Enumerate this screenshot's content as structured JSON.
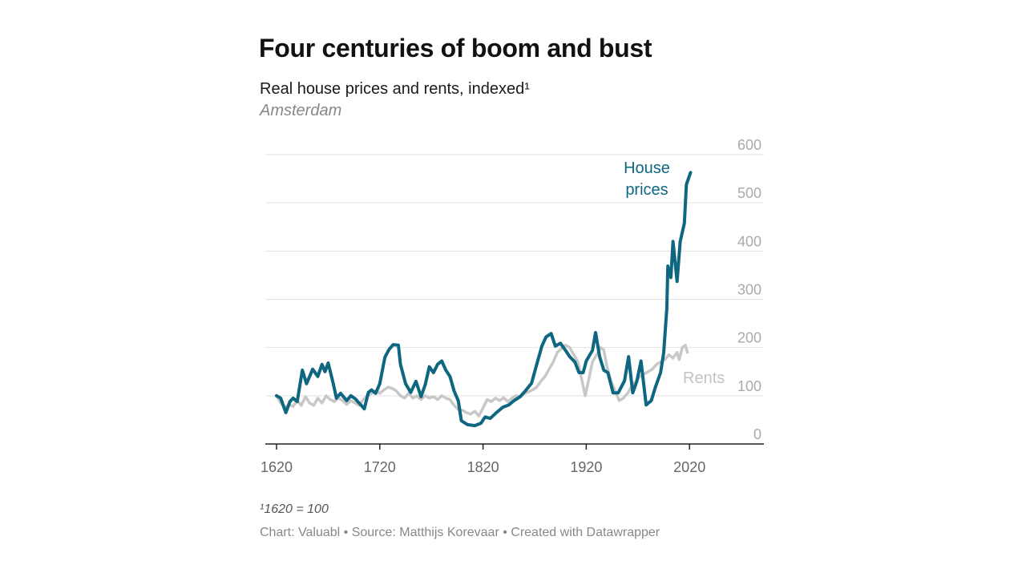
{
  "header": {
    "title": "Four centuries of boom and bust",
    "subtitle": "Real house prices and rents, indexed¹",
    "place": "Amsterdam"
  },
  "footer": {
    "footnote": "¹1620 = 100",
    "credits": "Chart: Valuabl • Source: Matthijs Korevaar • Created with Datawrapper"
  },
  "chart_data": {
    "type": "line",
    "title": "Four centuries of boom and bust",
    "subtitle": "Real house prices and rents, indexed¹",
    "xlabel": "",
    "ylabel": "",
    "xlim": [
      1610,
      2090
    ],
    "ylim": [
      0,
      600
    ],
    "x_ticks": [
      1620,
      1720,
      1820,
      1920,
      2020
    ],
    "x_tick_labels": [
      "1620",
      "1720",
      "1820",
      "1920",
      "2020"
    ],
    "y_ticks": [
      0,
      100,
      200,
      300,
      400,
      500,
      600
    ],
    "y_tick_labels": [
      "0",
      "100",
      "200",
      "300",
      "400",
      "500",
      "600"
    ],
    "y_axis_position": "right",
    "grid": true,
    "legend": "inline-labels",
    "series": [
      {
        "name": "Rents",
        "label": "Rents",
        "color": "#c8c8c8",
        "points": [
          [
            1620,
            100
          ],
          [
            1624,
            85
          ],
          [
            1628,
            75
          ],
          [
            1632,
            82
          ],
          [
            1636,
            78
          ],
          [
            1640,
            90
          ],
          [
            1644,
            80
          ],
          [
            1648,
            98
          ],
          [
            1652,
            85
          ],
          [
            1656,
            80
          ],
          [
            1660,
            95
          ],
          [
            1664,
            85
          ],
          [
            1668,
            100
          ],
          [
            1672,
            92
          ],
          [
            1676,
            88
          ],
          [
            1680,
            95
          ],
          [
            1684,
            90
          ],
          [
            1688,
            82
          ],
          [
            1692,
            90
          ],
          [
            1696,
            85
          ],
          [
            1700,
            80
          ],
          [
            1704,
            92
          ],
          [
            1708,
            100
          ],
          [
            1712,
            105
          ],
          [
            1716,
            110
          ],
          [
            1720,
            105
          ],
          [
            1724,
            112
          ],
          [
            1728,
            118
          ],
          [
            1732,
            115
          ],
          [
            1736,
            110
          ],
          [
            1740,
            100
          ],
          [
            1744,
            95
          ],
          [
            1748,
            105
          ],
          [
            1752,
            95
          ],
          [
            1756,
            100
          ],
          [
            1760,
            92
          ],
          [
            1764,
            100
          ],
          [
            1768,
            95
          ],
          [
            1772,
            98
          ],
          [
            1776,
            92
          ],
          [
            1780,
            100
          ],
          [
            1784,
            95
          ],
          [
            1788,
            92
          ],
          [
            1792,
            80
          ],
          [
            1796,
            72
          ],
          [
            1800,
            70
          ],
          [
            1804,
            65
          ],
          [
            1808,
            62
          ],
          [
            1812,
            68
          ],
          [
            1816,
            58
          ],
          [
            1820,
            75
          ],
          [
            1824,
            92
          ],
          [
            1828,
            88
          ],
          [
            1832,
            95
          ],
          [
            1836,
            90
          ],
          [
            1840,
            96
          ],
          [
            1844,
            88
          ],
          [
            1848,
            95
          ],
          [
            1852,
            100
          ],
          [
            1856,
            98
          ],
          [
            1860,
            105
          ],
          [
            1864,
            108
          ],
          [
            1868,
            112
          ],
          [
            1872,
            118
          ],
          [
            1876,
            130
          ],
          [
            1880,
            140
          ],
          [
            1884,
            155
          ],
          [
            1888,
            170
          ],
          [
            1892,
            190
          ],
          [
            1896,
            198
          ],
          [
            1900,
            205
          ],
          [
            1904,
            200
          ],
          [
            1908,
            185
          ],
          [
            1912,
            170
          ],
          [
            1916,
            130
          ],
          [
            1919,
            100
          ],
          [
            1922,
            130
          ],
          [
            1926,
            170
          ],
          [
            1930,
            185
          ],
          [
            1934,
            200
          ],
          [
            1937,
            195
          ],
          [
            1940,
            160
          ],
          [
            1944,
            130
          ],
          [
            1948,
            110
          ],
          [
            1952,
            90
          ],
          [
            1956,
            95
          ],
          [
            1960,
            105
          ],
          [
            1964,
            120
          ],
          [
            1968,
            130
          ],
          [
            1972,
            140
          ],
          [
            1976,
            145
          ],
          [
            1980,
            150
          ],
          [
            1984,
            155
          ],
          [
            1988,
            165
          ],
          [
            1992,
            170
          ],
          [
            1996,
            175
          ],
          [
            2000,
            185
          ],
          [
            2004,
            178
          ],
          [
            2008,
            190
          ],
          [
            2010,
            175
          ],
          [
            2013,
            200
          ],
          [
            2016,
            205
          ],
          [
            2018,
            190
          ]
        ]
      },
      {
        "name": "House prices",
        "label": "House prices",
        "color": "#0f6680",
        "points": [
          [
            1620,
            100
          ],
          [
            1624,
            95
          ],
          [
            1629,
            65
          ],
          [
            1633,
            88
          ],
          [
            1636,
            95
          ],
          [
            1640,
            88
          ],
          [
            1645,
            153
          ],
          [
            1649,
            125
          ],
          [
            1655,
            155
          ],
          [
            1660,
            140
          ],
          [
            1664,
            165
          ],
          [
            1667,
            150
          ],
          [
            1670,
            168
          ],
          [
            1675,
            125
          ],
          [
            1678,
            95
          ],
          [
            1682,
            105
          ],
          [
            1688,
            90
          ],
          [
            1692,
            100
          ],
          [
            1696,
            94
          ],
          [
            1700,
            85
          ],
          [
            1705,
            73
          ],
          [
            1709,
            107
          ],
          [
            1712,
            112
          ],
          [
            1716,
            105
          ],
          [
            1720,
            125
          ],
          [
            1725,
            180
          ],
          [
            1729,
            196
          ],
          [
            1733,
            206
          ],
          [
            1738,
            205
          ],
          [
            1740,
            165
          ],
          [
            1745,
            125
          ],
          [
            1750,
            107
          ],
          [
            1755,
            130
          ],
          [
            1760,
            98
          ],
          [
            1764,
            123
          ],
          [
            1768,
            160
          ],
          [
            1772,
            148
          ],
          [
            1776,
            165
          ],
          [
            1780,
            172
          ],
          [
            1784,
            153
          ],
          [
            1788,
            140
          ],
          [
            1792,
            110
          ],
          [
            1796,
            90
          ],
          [
            1799,
            48
          ],
          [
            1805,
            40
          ],
          [
            1812,
            38
          ],
          [
            1818,
            43
          ],
          [
            1822,
            56
          ],
          [
            1827,
            53
          ],
          [
            1833,
            65
          ],
          [
            1839,
            76
          ],
          [
            1845,
            81
          ],
          [
            1850,
            90
          ],
          [
            1856,
            98
          ],
          [
            1861,
            110
          ],
          [
            1867,
            126
          ],
          [
            1872,
            165
          ],
          [
            1877,
            203
          ],
          [
            1881,
            222
          ],
          [
            1886,
            229
          ],
          [
            1890,
            203
          ],
          [
            1895,
            209
          ],
          [
            1900,
            194
          ],
          [
            1904,
            181
          ],
          [
            1909,
            170
          ],
          [
            1913,
            148
          ],
          [
            1917,
            148
          ],
          [
            1920,
            172
          ],
          [
            1926,
            194
          ],
          [
            1929,
            231
          ],
          [
            1933,
            181
          ],
          [
            1937,
            153
          ],
          [
            1941,
            148
          ],
          [
            1946,
            106
          ],
          [
            1951,
            106
          ],
          [
            1957,
            131
          ],
          [
            1961,
            181
          ],
          [
            1965,
            106
          ],
          [
            1969,
            130
          ],
          [
            1973,
            172
          ],
          [
            1978,
            81
          ],
          [
            1983,
            90
          ],
          [
            1987,
            118
          ],
          [
            1992,
            148
          ],
          [
            1995,
            189
          ],
          [
            1998,
            281
          ],
          [
            1999,
            369
          ],
          [
            2002,
            345
          ],
          [
            2004,
            420
          ],
          [
            2008,
            337
          ],
          [
            2011,
            420
          ],
          [
            2015,
            458
          ],
          [
            2017,
            538
          ],
          [
            2021,
            563
          ]
        ]
      }
    ]
  }
}
